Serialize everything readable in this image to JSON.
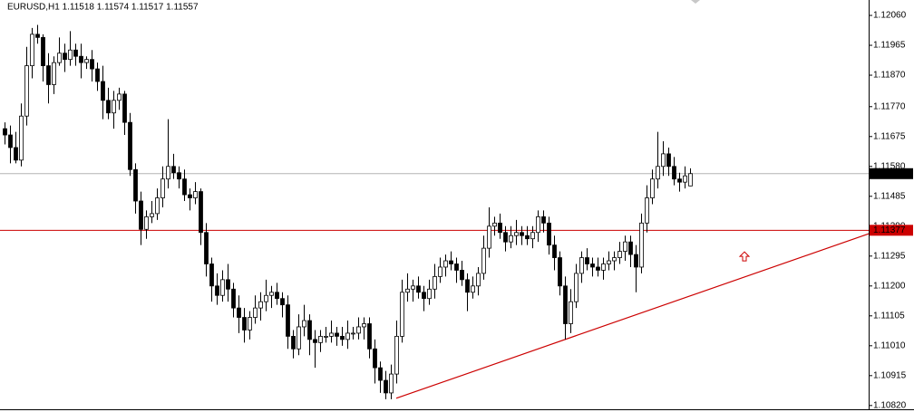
{
  "chart_data": {
    "type": "candlestick",
    "title": "EURUSD,H1  1.11518 1.11574 1.11517 1.11557",
    "ylim": [
      1.10808,
      1.12109
    ],
    "yticks": [
      {
        "value": 1.1206,
        "label": "1.12060"
      },
      1.11965,
      {
        "value": 1.1187,
        "label": "1.11870"
      },
      {
        "value": 1.1177,
        "label": "1.11770"
      },
      1.11675,
      {
        "value": 1.1158,
        "label": "1.11580"
      },
      1.11485,
      {
        "value": 1.1139,
        "label": "1.11390"
      },
      1.11295,
      {
        "value": 1.112,
        "label": "1.11200"
      },
      1.11105,
      {
        "value": 1.1101,
        "label": "1.11010"
      },
      1.10915,
      {
        "value": 1.1082,
        "label": "1.10820"
      }
    ],
    "colors": {
      "bull": "#ffffff",
      "bear": "#000000",
      "outline": "#000000",
      "level": "#cc0000",
      "bid": "#b4b4b4"
    },
    "bid": 1.11557,
    "level": 1.11377,
    "trendline": {
      "x": [
        72,
        159
      ],
      "values": [
        1.10843,
        1.11367
      ]
    },
    "arrow": {
      "x": 136,
      "value": 1.11294
    },
    "candles": [
      [
        1.117,
        1.1172,
        1.1165,
        1.1168
      ],
      [
        1.1168,
        1.1171,
        1.1159,
        1.1164
      ],
      [
        1.1164,
        1.1169,
        1.1159,
        1.116
      ],
      [
        1.116,
        1.1178,
        1.1158,
        1.1174
      ],
      [
        1.1174,
        1.1196,
        1.1171,
        1.119
      ],
      [
        1.119,
        1.1202,
        1.1186,
        1.12
      ],
      [
        1.12,
        1.1203,
        1.1197,
        1.1199
      ],
      [
        1.1199,
        1.12,
        1.1185,
        1.119
      ],
      [
        1.119,
        1.1194,
        1.1178,
        1.1184
      ],
      [
        1.1184,
        1.1193,
        1.1181,
        1.1191
      ],
      [
        1.1191,
        1.1199,
        1.119,
        1.1194
      ],
      [
        1.1194,
        1.1197,
        1.1188,
        1.1192
      ],
      [
        1.1192,
        1.1201,
        1.119,
        1.1195
      ],
      [
        1.1195,
        1.1197,
        1.119,
        1.1193
      ],
      [
        1.1193,
        1.1197,
        1.1186,
        1.1191
      ],
      [
        1.1191,
        1.1193,
        1.1189,
        1.1192
      ],
      [
        1.1192,
        1.1195,
        1.1185,
        1.1189
      ],
      [
        1.1189,
        1.1191,
        1.1182,
        1.1185
      ],
      [
        1.1185,
        1.119,
        1.1173,
        1.1179
      ],
      [
        1.1179,
        1.1183,
        1.1173,
        1.1175
      ],
      [
        1.1175,
        1.1182,
        1.117,
        1.1179
      ],
      [
        1.1179,
        1.1183,
        1.1176,
        1.1181
      ],
      [
        1.1181,
        1.1182,
        1.1168,
        1.1172
      ],
      [
        1.1172,
        1.1175,
        1.1155,
        1.1157
      ],
      [
        1.1157,
        1.1159,
        1.1143,
        1.1147
      ],
      [
        1.1147,
        1.115,
        1.1133,
        1.1138
      ],
      [
        1.1138,
        1.1144,
        1.1135,
        1.1142
      ],
      [
        1.1142,
        1.1147,
        1.114,
        1.1143
      ],
      [
        1.1143,
        1.1151,
        1.1141,
        1.1148
      ],
      [
        1.1148,
        1.1158,
        1.1145,
        1.1154
      ],
      [
        1.1154,
        1.1173,
        1.1151,
        1.1158
      ],
      [
        1.1158,
        1.1162,
        1.1154,
        1.1156
      ],
      [
        1.1156,
        1.1158,
        1.1151,
        1.1154
      ],
      [
        1.1154,
        1.1157,
        1.1147,
        1.1149
      ],
      [
        1.1149,
        1.1151,
        1.1144,
        1.1148
      ],
      [
        1.1148,
        1.1153,
        1.1146,
        1.115
      ],
      [
        1.115,
        1.1151,
        1.1133,
        1.1137
      ],
      [
        1.1137,
        1.114,
        1.1123,
        1.1127
      ],
      [
        1.1127,
        1.1129,
        1.1115,
        1.112
      ],
      [
        1.112,
        1.1124,
        1.1114,
        1.1117
      ],
      [
        1.1117,
        1.1125,
        1.1115,
        1.1122
      ],
      [
        1.1122,
        1.1127,
        1.1115,
        1.1119
      ],
      [
        1.1119,
        1.1121,
        1.111,
        1.1113
      ],
      [
        1.1113,
        1.1117,
        1.1105,
        1.111
      ],
      [
        1.111,
        1.1113,
        1.1102,
        1.1106
      ],
      [
        1.1106,
        1.1112,
        1.1103,
        1.111
      ],
      [
        1.111,
        1.1117,
        1.1108,
        1.1113
      ],
      [
        1.1113,
        1.1118,
        1.1109,
        1.1115
      ],
      [
        1.1115,
        1.1122,
        1.1112,
        1.1117
      ],
      [
        1.1117,
        1.112,
        1.1113,
        1.1118
      ],
      [
        1.1118,
        1.1121,
        1.1114,
        1.1116
      ],
      [
        1.1116,
        1.1118,
        1.111,
        1.1114
      ],
      [
        1.1114,
        1.1117,
        1.11,
        1.1104
      ],
      [
        1.1104,
        1.1106,
        1.1097,
        1.11
      ],
      [
        1.11,
        1.1111,
        1.1098,
        1.1107
      ],
      [
        1.1107,
        1.1114,
        1.1104,
        1.1109
      ],
      [
        1.1109,
        1.1111,
        1.1098,
        1.1103
      ],
      [
        1.1103,
        1.1106,
        1.1094,
        1.1102
      ],
      [
        1.1102,
        1.1106,
        1.1099,
        1.1104
      ],
      [
        1.1104,
        1.1107,
        1.1102,
        1.1104
      ],
      [
        1.1104,
        1.1109,
        1.1102,
        1.1105
      ],
      [
        1.1105,
        1.1107,
        1.1101,
        1.1104
      ],
      [
        1.1104,
        1.1107,
        1.1101,
        1.1103
      ],
      [
        1.1103,
        1.1109,
        1.11,
        1.1105
      ],
      [
        1.1105,
        1.1107,
        1.1103,
        1.1105
      ],
      [
        1.1105,
        1.111,
        1.1103,
        1.1107
      ],
      [
        1.1107,
        1.111,
        1.1103,
        1.1108
      ],
      [
        1.1108,
        1.111,
        1.1097,
        1.11
      ],
      [
        1.11,
        1.1103,
        1.1089,
        1.1094
      ],
      [
        1.1094,
        1.1096,
        1.1086,
        1.109
      ],
      [
        1.109,
        1.1093,
        1.1084,
        1.1086
      ],
      [
        1.1086,
        1.1095,
        1.1084,
        1.1092
      ],
      [
        1.1092,
        1.1109,
        1.1089,
        1.1104
      ],
      [
        1.1104,
        1.1122,
        1.1102,
        1.1118
      ],
      [
        1.1118,
        1.1124,
        1.1115,
        1.1119
      ],
      [
        1.1119,
        1.1122,
        1.1115,
        1.112
      ],
      [
        1.112,
        1.1123,
        1.1116,
        1.1118
      ],
      [
        1.1118,
        1.112,
        1.1112,
        1.1116
      ],
      [
        1.1116,
        1.1122,
        1.1114,
        1.1119
      ],
      [
        1.1119,
        1.1127,
        1.1116,
        1.1123
      ],
      [
        1.1123,
        1.1129,
        1.1121,
        1.1126
      ],
      [
        1.1126,
        1.113,
        1.1123,
        1.1128
      ],
      [
        1.1128,
        1.1131,
        1.1125,
        1.1127
      ],
      [
        1.1127,
        1.1129,
        1.1121,
        1.1125
      ],
      [
        1.1125,
        1.1128,
        1.112,
        1.1122
      ],
      [
        1.1122,
        1.1124,
        1.1112,
        1.1118
      ],
      [
        1.1118,
        1.1123,
        1.1116,
        1.112
      ],
      [
        1.112,
        1.1126,
        1.1117,
        1.1124
      ],
      [
        1.1124,
        1.1136,
        1.1122,
        1.1132
      ],
      [
        1.1132,
        1.1145,
        1.1129,
        1.1139
      ],
      [
        1.1139,
        1.1142,
        1.1136,
        1.114
      ],
      [
        1.114,
        1.1143,
        1.1135,
        1.1137
      ],
      [
        1.1137,
        1.1139,
        1.1131,
        1.1134
      ],
      [
        1.1134,
        1.1139,
        1.1132,
        1.1136
      ],
      [
        1.1136,
        1.1141,
        1.1133,
        1.1137
      ],
      [
        1.1137,
        1.1139,
        1.1133,
        1.1136
      ],
      [
        1.1136,
        1.1139,
        1.1133,
        1.1135
      ],
      [
        1.1135,
        1.1139,
        1.1132,
        1.1137
      ],
      [
        1.1137,
        1.1144,
        1.1134,
        1.1142
      ],
      [
        1.1142,
        1.1144,
        1.1137,
        1.114
      ],
      [
        1.114,
        1.1142,
        1.113,
        1.1133
      ],
      [
        1.1133,
        1.1136,
        1.1125,
        1.1129
      ],
      [
        1.1129,
        1.1131,
        1.1117,
        1.112
      ],
      [
        1.112,
        1.1123,
        1.1103,
        1.1108
      ],
      [
        1.1108,
        1.1119,
        1.1105,
        1.1115
      ],
      [
        1.1115,
        1.1127,
        1.1113,
        1.1124
      ],
      [
        1.1124,
        1.1131,
        1.1121,
        1.1129
      ],
      [
        1.1129,
        1.1132,
        1.1125,
        1.1127
      ],
      [
        1.1127,
        1.1129,
        1.1123,
        1.1126
      ],
      [
        1.1126,
        1.1129,
        1.1123,
        1.1125
      ],
      [
        1.1125,
        1.1129,
        1.1122,
        1.1127
      ],
      [
        1.1127,
        1.1131,
        1.1125,
        1.1128
      ],
      [
        1.1128,
        1.1131,
        1.1125,
        1.1129
      ],
      [
        1.1129,
        1.1134,
        1.1127,
        1.1131
      ],
      [
        1.1131,
        1.1136,
        1.1128,
        1.1134
      ],
      [
        1.1134,
        1.1136,
        1.1126,
        1.113
      ],
      [
        1.113,
        1.1133,
        1.1118,
        1.1126
      ],
      [
        1.1126,
        1.1143,
        1.1124,
        1.114
      ],
      [
        1.114,
        1.1152,
        1.1137,
        1.1148
      ],
      [
        1.1148,
        1.1157,
        1.1146,
        1.1154
      ],
      [
        1.1154,
        1.1169,
        1.1151,
        1.1158
      ],
      [
        1.1158,
        1.1166,
        1.1155,
        1.1162
      ],
      [
        1.1162,
        1.1164,
        1.1155,
        1.1158
      ],
      [
        1.1158,
        1.1161,
        1.1152,
        1.1154
      ],
      [
        1.1154,
        1.1156,
        1.115,
        1.1153
      ],
      [
        1.1153,
        1.1158,
        1.1151,
        1.1155
      ],
      [
        1.11518,
        1.11574,
        1.11517,
        1.11557
      ]
    ]
  }
}
